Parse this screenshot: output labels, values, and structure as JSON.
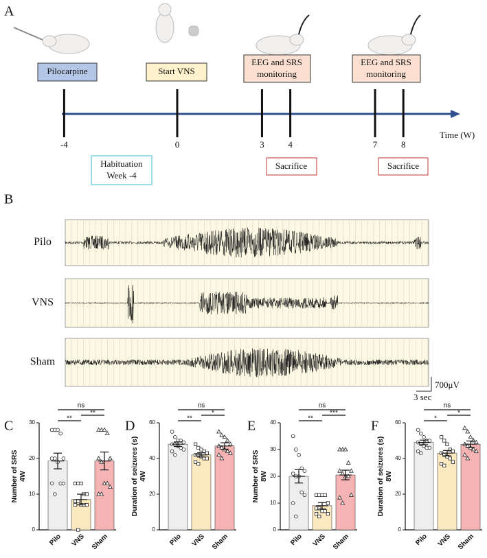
{
  "panel_labels": [
    "A",
    "B",
    "C",
    "D",
    "E",
    "F"
  ],
  "timeline": {
    "ticks": [
      -4,
      0,
      3,
      4,
      7,
      8
    ],
    "axis_label": "Time (W)",
    "pilocarpine": "Pilocarpine",
    "start_vns": "Start VNS",
    "monitoring": [
      [
        "EEG and SRS",
        "monitoring"
      ],
      [
        "EEG and SRS",
        "monitoring"
      ]
    ],
    "habituation": [
      "Habituation",
      "Week -4"
    ],
    "sacrifice": [
      "Sacrifice",
      "Sacrifice"
    ]
  },
  "eeg": {
    "traces": [
      "Pilo",
      "VNS",
      "Sham"
    ],
    "scale_voltage": "700μV",
    "scale_time": "3 sec"
  },
  "chart_data": [
    {
      "type": "bar",
      "ylabel": [
        "Number of SRS",
        "4W"
      ],
      "categories": [
        "Pilo",
        "VNS",
        "Sham"
      ],
      "values": [
        19.3,
        8.5,
        19.3
      ],
      "errors": [
        2.2,
        1.5,
        2.5
      ],
      "colors": [
        "#eeeeee",
        "#fde9bf",
        "#f5b3b3"
      ],
      "markers": [
        "circle",
        "square",
        "triangle"
      ],
      "points": [
        [
          28,
          28,
          28,
          27,
          20,
          20,
          20,
          19,
          13,
          13,
          13,
          10
        ],
        [
          13,
          13,
          13,
          10,
          10,
          8,
          8,
          7,
          7,
          7,
          7,
          0
        ],
        [
          28,
          28,
          28,
          27,
          20,
          20,
          19,
          13,
          13,
          12,
          10,
          10
        ]
      ],
      "ylim": [
        0,
        30
      ],
      "yticks": [
        0,
        10,
        20,
        30
      ],
      "brackets": [
        {
          "from": "Pilo",
          "to": "Sham",
          "label": "ns"
        },
        {
          "from": "Pilo",
          "to": "VNS",
          "label": "**"
        },
        {
          "from": "VNS",
          "to": "Sham",
          "label": "**"
        }
      ]
    },
    {
      "type": "bar",
      "ylabel": [
        "Duration of seizures (s)",
        "4W"
      ],
      "categories": [
        "Pilo",
        "VNS",
        "Sham"
      ],
      "values": [
        48,
        42,
        47
      ],
      "errors": [
        1.3,
        1.2,
        1.8
      ],
      "colors": [
        "#eeeeee",
        "#fde9bf",
        "#f5b3b3"
      ],
      "markers": [
        "circle",
        "square",
        "triangle"
      ],
      "points": [
        [
          55,
          52,
          50,
          50,
          49,
          48,
          48,
          47,
          46,
          45,
          44,
          42
        ],
        [
          48,
          46,
          45,
          44,
          43,
          42,
          42,
          41,
          40,
          40,
          38,
          37
        ],
        [
          55,
          53,
          52,
          50,
          48,
          47,
          46,
          45,
          44,
          43,
          42,
          40
        ]
      ],
      "ylim": [
        0,
        60
      ],
      "yticks": [
        0,
        20,
        40,
        60
      ],
      "brackets": [
        {
          "from": "Pilo",
          "to": "Sham",
          "label": "ns"
        },
        {
          "from": "Pilo",
          "to": "VNS",
          "label": "**"
        },
        {
          "from": "VNS",
          "to": "Sham",
          "label": "*"
        }
      ]
    },
    {
      "type": "bar",
      "ylabel": [
        "Number of SRS",
        "8W"
      ],
      "categories": [
        "Pilo",
        "VNS",
        "Sham"
      ],
      "values": [
        20,
        9,
        20.5
      ],
      "errors": [
        2.5,
        1.2,
        1.8
      ],
      "colors": [
        "#eeeeee",
        "#fde9bf",
        "#f5b3b3"
      ],
      "markers": [
        "circle",
        "square",
        "triangle"
      ],
      "points": [
        [
          35,
          30,
          28,
          23,
          22,
          21,
          20,
          20,
          14,
          13,
          10,
          5
        ],
        [
          13,
          13,
          13,
          13,
          10,
          8,
          8,
          7,
          7,
          6,
          6,
          5
        ],
        [
          30,
          30,
          30,
          25,
          22,
          22,
          21,
          20,
          20,
          13,
          12,
          10
        ]
      ],
      "ylim": [
        0,
        40
      ],
      "yticks": [
        0,
        10,
        20,
        30,
        40
      ],
      "brackets": [
        {
          "from": "Pilo",
          "to": "Sham",
          "label": "ns"
        },
        {
          "from": "Pilo",
          "to": "VNS",
          "label": "**"
        },
        {
          "from": "VNS",
          "to": "Sham",
          "label": "***"
        }
      ]
    },
    {
      "type": "bar",
      "ylabel": [
        "Duration of seizures (s)",
        "8W"
      ],
      "categories": [
        "Pilo",
        "VNS",
        "Sham"
      ],
      "values": [
        49,
        43,
        48
      ],
      "errors": [
        1.3,
        1.5,
        1.8
      ],
      "colors": [
        "#eeeeee",
        "#fde9bf",
        "#f5b3b3"
      ],
      "markers": [
        "circle",
        "square",
        "triangle"
      ],
      "points": [
        [
          56,
          54,
          52,
          50,
          50,
          49,
          48,
          47,
          46,
          46,
          44,
          43
        ],
        [
          52,
          50,
          48,
          45,
          44,
          43,
          42,
          41,
          40,
          38,
          37,
          36
        ],
        [
          57,
          55,
          52,
          50,
          49,
          48,
          47,
          46,
          45,
          44,
          42,
          40
        ]
      ],
      "ylim": [
        0,
        60
      ],
      "yticks": [
        0,
        20,
        40,
        60
      ],
      "brackets": [
        {
          "from": "Pilo",
          "to": "Sham",
          "label": "ns"
        },
        {
          "from": "Pilo",
          "to": "VNS",
          "label": "*"
        },
        {
          "from": "VNS",
          "to": "Sham",
          "label": "*"
        }
      ]
    }
  ]
}
